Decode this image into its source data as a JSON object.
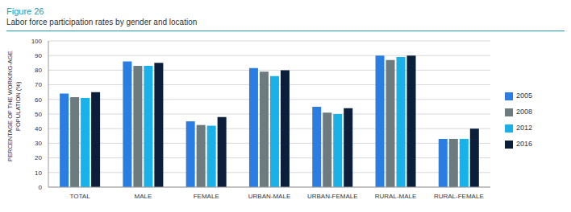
{
  "chart_data": {
    "type": "bar",
    "title": "Figure 26",
    "subtitle": "Labor force participation rates by gender and location",
    "y_label": "PERCENTAGE OF THE WORKING-AGE POPULATION (%)",
    "categories": [
      "TOTAL",
      "MALE",
      "FEMALE",
      "URBAN-MALE",
      "URBAN-FEMALE",
      "RURAL-MALE",
      "RURAL-FEMALE"
    ],
    "series": [
      {
        "name": "2005",
        "color": "#2a7de1",
        "values": [
          64,
          86,
          45,
          81.5,
          55,
          90,
          33
        ]
      },
      {
        "name": "2008",
        "color": "#6d7b7f",
        "values": [
          61.5,
          83,
          42.5,
          79,
          51,
          87,
          33
        ]
      },
      {
        "name": "2012",
        "color": "#1ab0e8",
        "values": [
          61,
          83,
          42,
          76,
          50,
          89,
          33
        ]
      },
      {
        "name": "2016",
        "color": "#0b1f3a",
        "values": [
          65,
          85,
          48,
          80,
          54,
          90,
          40
        ]
      }
    ],
    "ylim": [
      0,
      100
    ],
    "yticks": [
      0,
      10,
      20,
      30,
      40,
      50,
      60,
      70,
      80,
      90,
      100
    ],
    "grid": true,
    "legend": "right"
  }
}
